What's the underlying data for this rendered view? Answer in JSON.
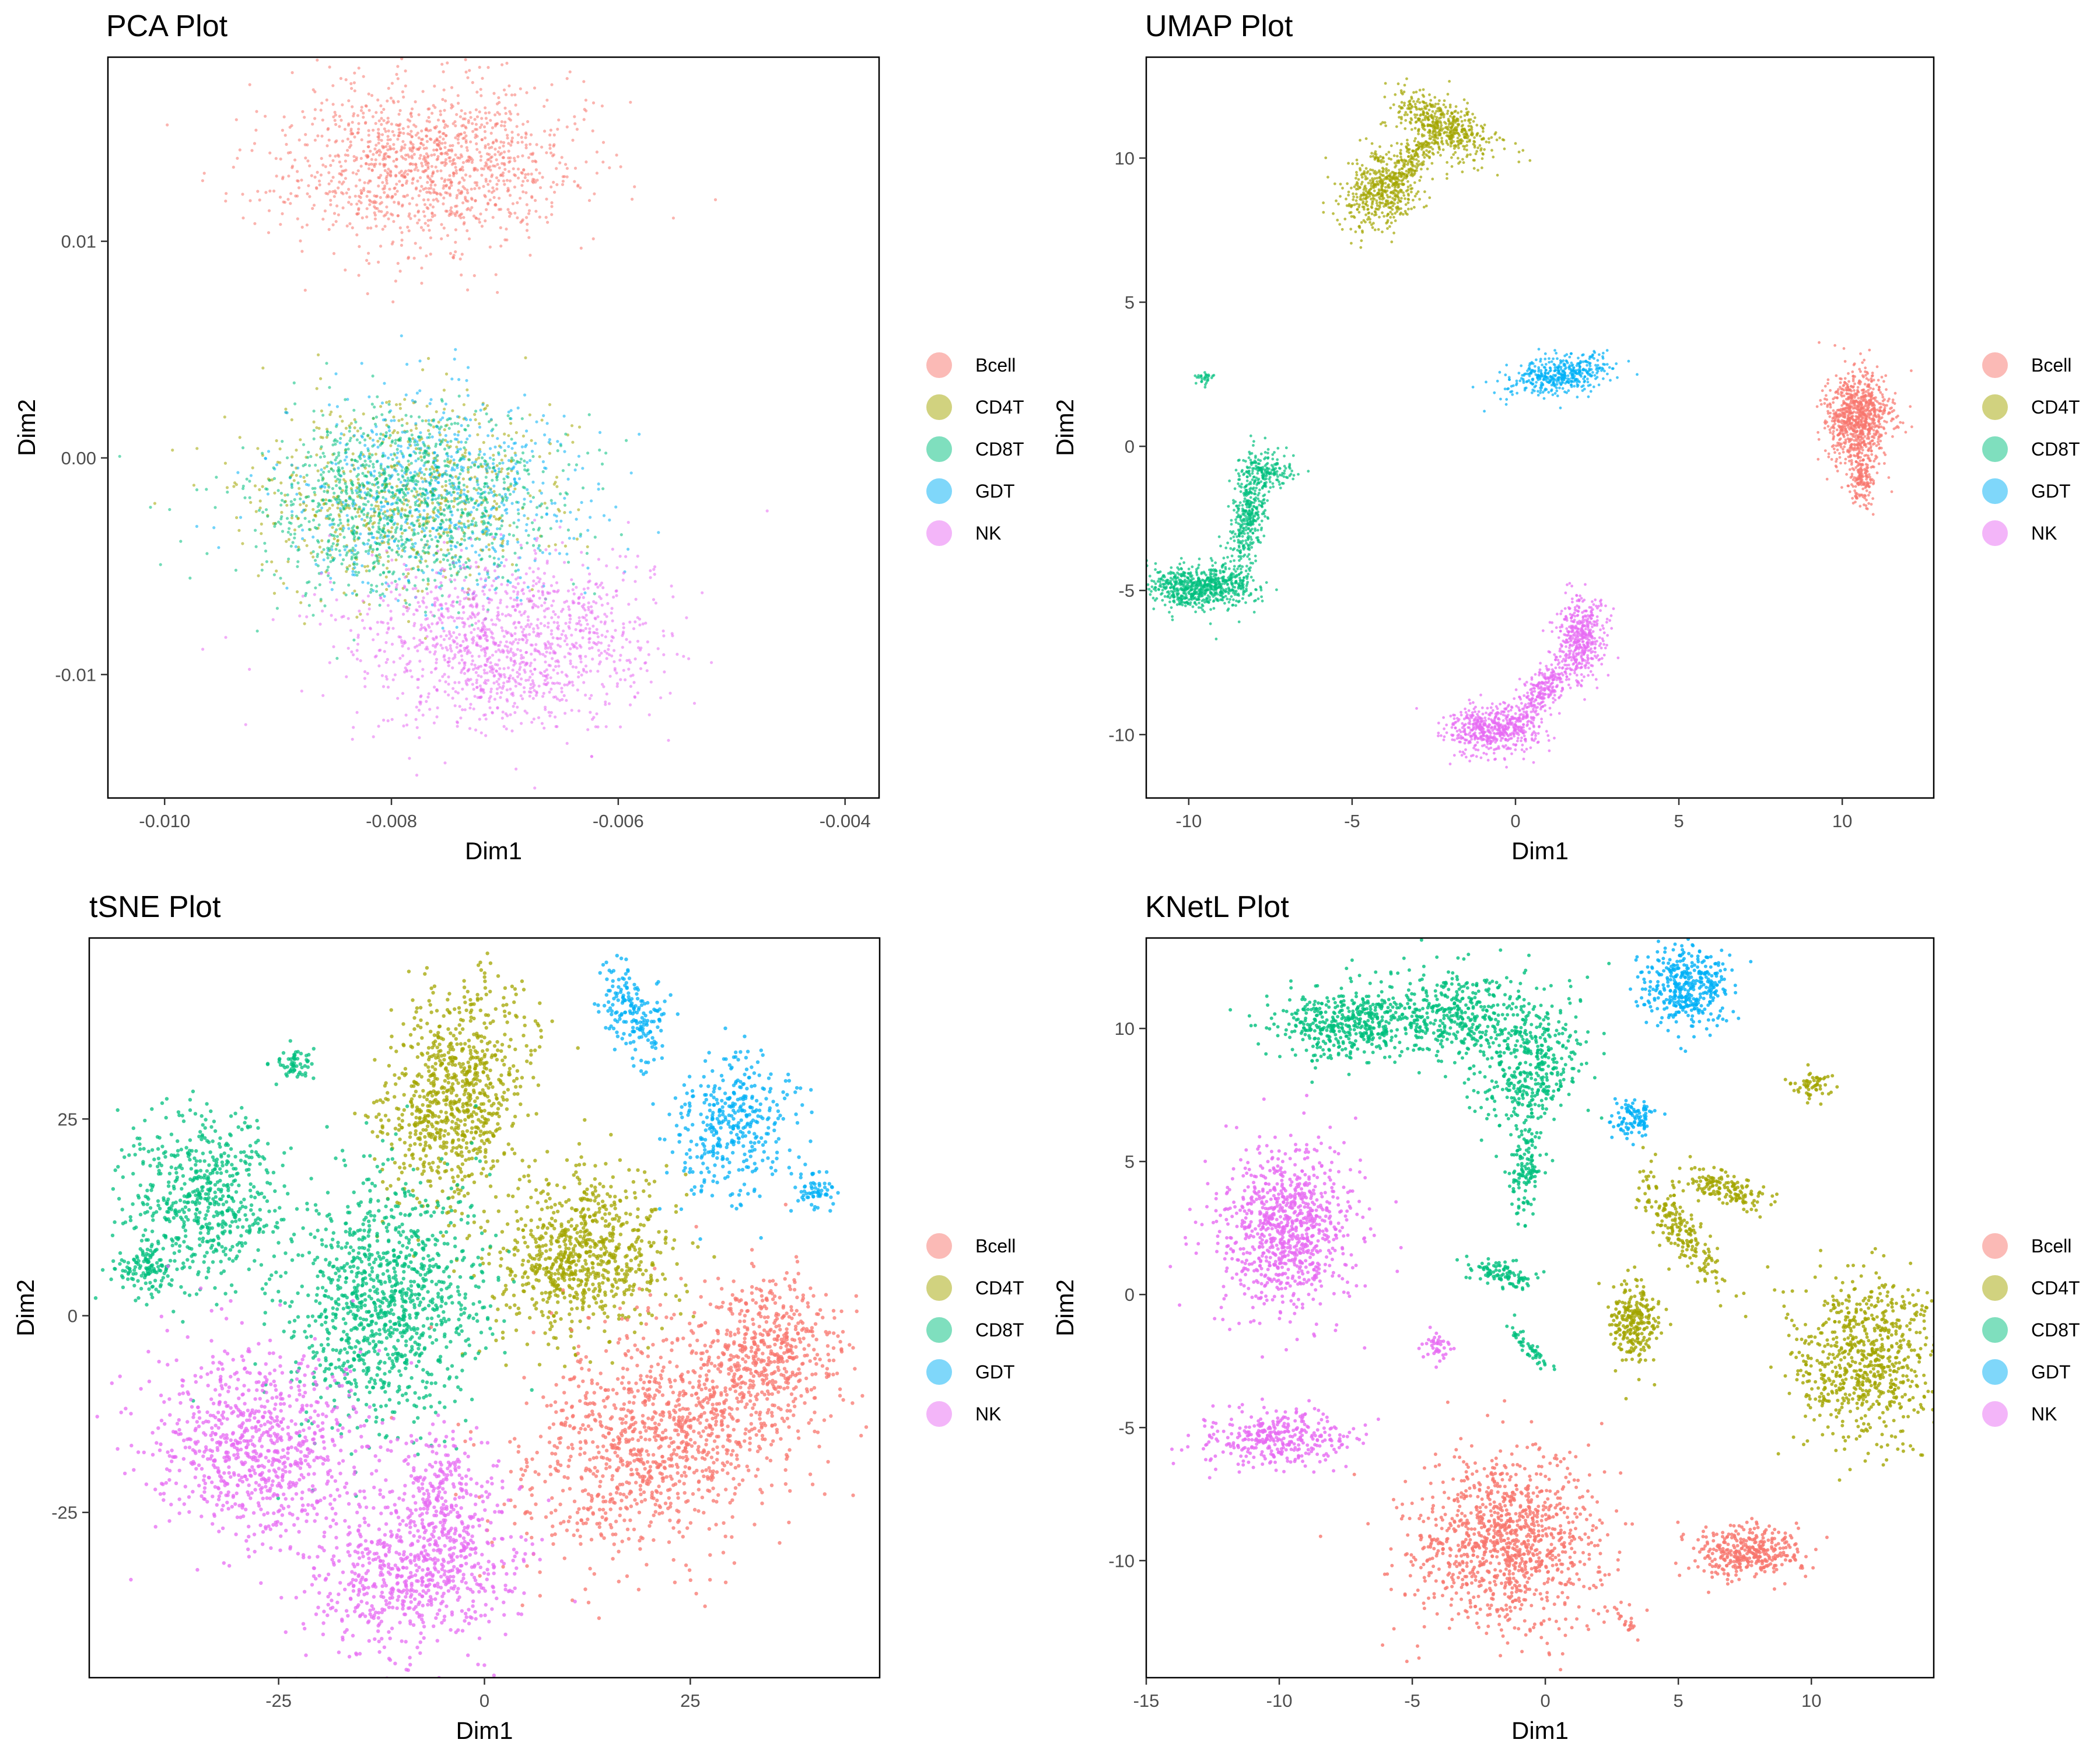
{
  "colors": {
    "Bcell": "#F8766D",
    "CD4T": "#A3A500",
    "CD8T": "#00BF7D",
    "GDT": "#00B0F6",
    "NK": "#E76BF3"
  },
  "chart_data": [
    {
      "type": "scatter",
      "title": "PCA Plot",
      "xlabel": "Dim1",
      "ylabel": "Dim2",
      "xlim": [
        -0.0105,
        -0.0037
      ],
      "ylim": [
        -0.0157,
        0.0185
      ],
      "xticks": [
        -0.01,
        -0.008,
        -0.006,
        -0.004
      ],
      "xtick_labels": [
        "-0.010",
        "-0.008",
        "-0.006",
        "-0.004"
      ],
      "yticks": [
        -0.01,
        0.0,
        0.01
      ],
      "ytick_labels": [
        "-0.01",
        "0.00",
        "0.01"
      ],
      "legend": [
        "Bcell",
        "CD4T",
        "CD8T",
        "GDT",
        "NK"
      ],
      "legend_position": "right",
      "point_size": 2.6,
      "opacity": 0.55,
      "clusters": [
        {
          "label": "Bcell",
          "cx": -0.0077,
          "cy": 0.0135,
          "sx": 0.0007,
          "sy": 0.0021,
          "n": 1300,
          "rot": 0
        },
        {
          "label": "CD4T",
          "cx": -0.0079,
          "cy": -0.0018,
          "sx": 0.00075,
          "sy": 0.0025,
          "n": 700,
          "rot": 0
        },
        {
          "label": "GDT",
          "cx": -0.0076,
          "cy": -0.0016,
          "sx": 0.0007,
          "sy": 0.0025,
          "n": 700,
          "rot": 0
        },
        {
          "label": "CD8T",
          "cx": -0.0079,
          "cy": -0.0022,
          "sx": 0.0007,
          "sy": 0.0023,
          "n": 1100,
          "rot": 0
        },
        {
          "label": "NK",
          "cx": -0.007,
          "cy": -0.0085,
          "sx": 0.00075,
          "sy": 0.0022,
          "n": 1300,
          "rot": 0
        }
      ]
    },
    {
      "type": "scatter",
      "title": "UMAP Plot",
      "xlabel": "Dim1",
      "ylabel": "Dim2",
      "xlim": [
        -11.3,
        12.8
      ],
      "ylim": [
        -12.2,
        13.5
      ],
      "xticks": [
        -10,
        -5,
        0,
        5,
        10
      ],
      "xtick_labels": [
        "-10",
        "-5",
        "0",
        "5",
        "10"
      ],
      "yticks": [
        -10,
        -5,
        0,
        5,
        10
      ],
      "ytick_labels": [
        "-10",
        "-5",
        "0",
        "5",
        "10"
      ],
      "legend": [
        "Bcell",
        "CD4T",
        "CD8T",
        "GDT",
        "NK"
      ],
      "legend_position": "right",
      "point_size": 2.4,
      "opacity": 0.7,
      "clusters": [
        {
          "label": "CD4T",
          "cx": -2.2,
          "cy": 11.1,
          "sx": 0.9,
          "sy": 0.5,
          "n": 500,
          "rot": -25
        },
        {
          "label": "CD4T",
          "cx": -4.1,
          "cy": 8.9,
          "sx": 0.7,
          "sy": 0.7,
          "n": 500,
          "rot": 40
        },
        {
          "label": "CD4T",
          "cx": -3.1,
          "cy": 9.9,
          "sx": 0.6,
          "sy": 0.25,
          "n": 150,
          "rot": 50
        },
        {
          "label": "GDT",
          "cx": 1.4,
          "cy": 2.5,
          "sx": 0.9,
          "sy": 0.35,
          "n": 450,
          "rot": 10
        },
        {
          "label": "CD8T",
          "cx": -9.7,
          "cy": -4.9,
          "sx": 0.9,
          "sy": 0.4,
          "n": 700,
          "rot": 0
        },
        {
          "label": "CD8T",
          "cx": -8.2,
          "cy": -2.5,
          "sx": 0.3,
          "sy": 1.2,
          "n": 400,
          "rot": -10
        },
        {
          "label": "CD8T",
          "cx": -7.6,
          "cy": -0.8,
          "sx": 0.5,
          "sy": 0.3,
          "n": 150,
          "rot": 0
        },
        {
          "label": "CD8T",
          "cx": -9.5,
          "cy": 2.4,
          "sx": 0.12,
          "sy": 0.15,
          "n": 30,
          "rot": 0
        },
        {
          "label": "Bcell",
          "cx": 10.5,
          "cy": 1.0,
          "sx": 0.55,
          "sy": 0.85,
          "n": 900,
          "rot": 0
        },
        {
          "label": "Bcell",
          "cx": 10.6,
          "cy": -1.2,
          "sx": 0.2,
          "sy": 0.5,
          "n": 150,
          "rot": 0
        },
        {
          "label": "NK",
          "cx": 2.0,
          "cy": -6.6,
          "sx": 0.4,
          "sy": 0.8,
          "n": 450,
          "rot": 0
        },
        {
          "label": "NK",
          "cx": 0.8,
          "cy": -8.5,
          "sx": 0.3,
          "sy": 0.8,
          "n": 300,
          "rot": -40
        },
        {
          "label": "NK",
          "cx": -0.7,
          "cy": -9.8,
          "sx": 0.8,
          "sy": 0.45,
          "n": 550,
          "rot": 0
        }
      ]
    },
    {
      "type": "scatter",
      "title": "tSNE Plot",
      "xlabel": "Dim1",
      "ylabel": "Dim2",
      "xlim": [
        -48,
        48
      ],
      "ylim": [
        -46,
        48
      ],
      "xticks": [
        -25,
        0,
        25
      ],
      "xtick_labels": [
        "-25",
        "0",
        "25"
      ],
      "yticks": [
        -25,
        0,
        25
      ],
      "ytick_labels": [
        "-25",
        "0",
        "25"
      ],
      "legend": [
        "Bcell",
        "CD4T",
        "CD8T",
        "GDT",
        "NK"
      ],
      "legend_position": "right",
      "point_size": 3.2,
      "opacity": 0.75,
      "clusters": [
        {
          "label": "CD4T",
          "cx": -3.5,
          "cy": 28,
          "sx": 4.5,
          "sy": 8,
          "n": 850,
          "rot": -15
        },
        {
          "label": "CD4T",
          "cx": 12,
          "cy": 8,
          "sx": 6,
          "sy": 5.5,
          "n": 800,
          "rot": 25
        },
        {
          "label": "GDT",
          "cx": 18,
          "cy": 38,
          "sx": 2,
          "sy": 3.5,
          "n": 180,
          "rot": 20
        },
        {
          "label": "GDT",
          "cx": 30,
          "cy": 24,
          "sx": 4,
          "sy": 5,
          "n": 380,
          "rot": -30
        },
        {
          "label": "GDT",
          "cx": 40,
          "cy": 16,
          "sx": 1.5,
          "sy": 1.5,
          "n": 60,
          "rot": 0
        },
        {
          "label": "CD8T",
          "cx": -23,
          "cy": 32,
          "sx": 1.5,
          "sy": 1.0,
          "n": 60,
          "rot": 0
        },
        {
          "label": "CD8T",
          "cx": -34,
          "cy": 15,
          "sx": 5,
          "sy": 6,
          "n": 600,
          "rot": 0
        },
        {
          "label": "CD8T",
          "cx": -41,
          "cy": 6,
          "sx": 2,
          "sy": 2,
          "n": 120,
          "rot": 0
        },
        {
          "label": "CD8T",
          "cx": -12,
          "cy": 2,
          "sx": 6.5,
          "sy": 8.5,
          "n": 1100,
          "rot": 0
        },
        {
          "label": "Bcell",
          "cx": 22,
          "cy": -15,
          "sx": 10,
          "sy": 7.5,
          "n": 1200,
          "rot": 25
        },
        {
          "label": "Bcell",
          "cx": 35,
          "cy": -4,
          "sx": 4,
          "sy": 5,
          "n": 400,
          "rot": 0
        },
        {
          "label": "NK",
          "cx": -27,
          "cy": -17,
          "sx": 7.5,
          "sy": 7,
          "n": 900,
          "rot": -25
        },
        {
          "label": "NK",
          "cx": -8,
          "cy": -33,
          "sx": 7,
          "sy": 5,
          "n": 700,
          "rot": 15
        },
        {
          "label": "NK",
          "cx": -5,
          "cy": -22,
          "sx": 3,
          "sy": 4,
          "n": 200,
          "rot": 0
        }
      ]
    },
    {
      "type": "scatter",
      "title": "KNetL Plot",
      "xlabel": "Dim1",
      "ylabel": "Dim2",
      "xlim": [
        -15.0,
        14.6
      ],
      "ylim": [
        -14.4,
        13.4
      ],
      "xticks": [
        -15,
        -10,
        -5,
        0,
        5,
        10
      ],
      "xtick_labels": [
        "-15",
        "-10",
        "-5",
        "0",
        "5",
        "10"
      ],
      "yticks": [
        -10,
        -5,
        0,
        5,
        10
      ],
      "ytick_labels": [
        "-10",
        "-5",
        "0",
        "5",
        "10"
      ],
      "legend": [
        "Bcell",
        "CD4T",
        "CD8T",
        "GDT",
        "NK"
      ],
      "legend_position": "right",
      "point_size": 3.0,
      "opacity": 0.8,
      "clusters": [
        {
          "label": "CD8T",
          "cx": -7.5,
          "cy": 10.2,
          "sx": 1.4,
          "sy": 0.7,
          "n": 450,
          "rot": 0
        },
        {
          "label": "CD8T",
          "cx": -3,
          "cy": 10.5,
          "sx": 2.0,
          "sy": 1.0,
          "n": 500,
          "rot": -10
        },
        {
          "label": "CD8T",
          "cx": -0.5,
          "cy": 8.3,
          "sx": 0.9,
          "sy": 1.4,
          "n": 350,
          "rot": -30
        },
        {
          "label": "CD8T",
          "cx": -0.7,
          "cy": 4.6,
          "sx": 0.35,
          "sy": 0.9,
          "n": 120,
          "rot": 0
        },
        {
          "label": "CD8T",
          "cx": -1.7,
          "cy": 0.8,
          "sx": 0.7,
          "sy": 0.25,
          "n": 100,
          "rot": -15
        },
        {
          "label": "CD8T",
          "cx": -0.6,
          "cy": -2.0,
          "sx": 0.15,
          "sy": 0.6,
          "n": 50,
          "rot": 40
        },
        {
          "label": "GDT",
          "cx": 5.3,
          "cy": 11.5,
          "sx": 0.9,
          "sy": 0.9,
          "n": 400,
          "rot": 0
        },
        {
          "label": "GDT",
          "cx": 3.3,
          "cy": 6.6,
          "sx": 0.5,
          "sy": 0.4,
          "n": 100,
          "rot": 0
        },
        {
          "label": "NK",
          "cx": -9.7,
          "cy": 2.5,
          "sx": 1.4,
          "sy": 1.7,
          "n": 900,
          "rot": 0
        },
        {
          "label": "NK",
          "cx": -10.3,
          "cy": -5.4,
          "sx": 1.7,
          "sy": 0.6,
          "n": 350,
          "rot": 0
        },
        {
          "label": "NK",
          "cx": -4.1,
          "cy": -2.0,
          "sx": 0.3,
          "sy": 0.3,
          "n": 40,
          "rot": 0
        },
        {
          "label": "CD4T",
          "cx": 3.4,
          "cy": -1.0,
          "sx": 0.5,
          "sy": 0.9,
          "n": 250,
          "rot": 0
        },
        {
          "label": "CD4T",
          "cx": 5.0,
          "cy": 2.5,
          "sx": 0.4,
          "sy": 1.5,
          "n": 200,
          "rot": 35
        },
        {
          "label": "CD4T",
          "cx": 6.8,
          "cy": 4.0,
          "sx": 0.9,
          "sy": 0.35,
          "n": 150,
          "rot": -20
        },
        {
          "label": "CD4T",
          "cx": 10.1,
          "cy": 7.9,
          "sx": 0.45,
          "sy": 0.3,
          "n": 60,
          "rot": 0
        },
        {
          "label": "CD4T",
          "cx": 12.0,
          "cy": -2.4,
          "sx": 1.5,
          "sy": 1.7,
          "n": 750,
          "rot": 0
        },
        {
          "label": "Bcell",
          "cx": -1.6,
          "cy": -9.3,
          "sx": 1.9,
          "sy": 1.8,
          "n": 1100,
          "rot": 0
        },
        {
          "label": "Bcell",
          "cx": 7.6,
          "cy": -9.7,
          "sx": 1.1,
          "sy": 0.55,
          "n": 350,
          "rot": 0
        },
        {
          "label": "Bcell",
          "cx": 3.0,
          "cy": -12.3,
          "sx": 0.15,
          "sy": 0.5,
          "n": 20,
          "rot": 30
        }
      ]
    }
  ]
}
